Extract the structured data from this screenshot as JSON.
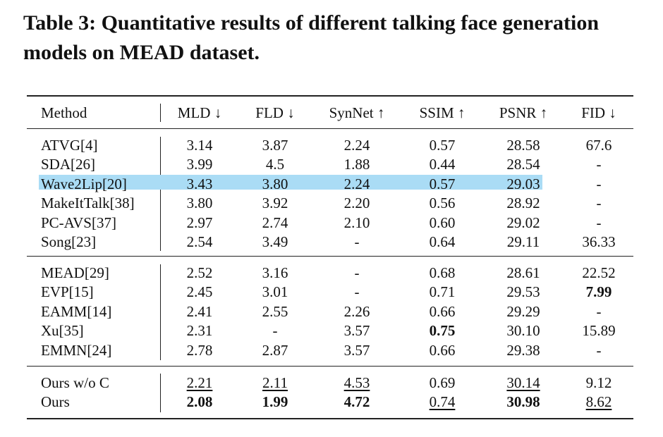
{
  "caption": "Table 3: Quantitative results of different talking face generation models on MEAD dataset.",
  "columns": [
    "Method",
    "MLD ↓",
    "FLD ↓",
    "SynNet ↑",
    "SSIM ↑",
    "PSNR ↑",
    "FID ↓"
  ],
  "highlight_color": "#aadcf5",
  "groups": [
    [
      {
        "method": "ATVG[4]",
        "values": [
          "3.14",
          "3.87",
          "2.24",
          "0.57",
          "28.58",
          "67.6"
        ]
      },
      {
        "method": "SDA[26]",
        "values": [
          "3.99",
          "4.5",
          "1.88",
          "0.44",
          "28.54",
          "-"
        ]
      },
      {
        "method": "Wave2Lip[20]",
        "values": [
          "3.43",
          "3.80",
          "2.24",
          "0.57",
          "29.03",
          "-"
        ],
        "highlighted": true
      },
      {
        "method": "MakeItTalk[38]",
        "values": [
          "3.80",
          "3.92",
          "2.20",
          "0.56",
          "28.92",
          "-"
        ]
      },
      {
        "method": "PC-AVS[37]",
        "values": [
          "2.97",
          "2.74",
          "2.10",
          "0.60",
          "29.02",
          "-"
        ]
      },
      {
        "method": "Song[23]",
        "values": [
          "2.54",
          "3.49",
          "-",
          "0.64",
          "29.11",
          "36.33"
        ]
      }
    ],
    [
      {
        "method": "MEAD[29]",
        "values": [
          "2.52",
          "3.16",
          "-",
          "0.68",
          "28.61",
          "22.52"
        ]
      },
      {
        "method": "EVP[15]",
        "values": [
          "2.45",
          "3.01",
          "-",
          "0.71",
          "29.53",
          "7.99"
        ],
        "bold": [
          5
        ]
      },
      {
        "method": "EAMM[14]",
        "values": [
          "2.41",
          "2.55",
          "2.26",
          "0.66",
          "29.29",
          "-"
        ]
      },
      {
        "method": "Xu[35]",
        "values": [
          "2.31",
          "-",
          "3.57",
          "0.75",
          "30.10",
          "15.89"
        ],
        "bold": [
          3
        ]
      },
      {
        "method": "EMMN[24]",
        "values": [
          "2.78",
          "2.87",
          "3.57",
          "0.66",
          "29.38",
          "-"
        ]
      }
    ],
    [
      {
        "method": "Ours w/o C",
        "values": [
          "2.21",
          "2.11",
          "4.53",
          "0.69",
          "30.14",
          "9.12"
        ],
        "underline": [
          0,
          1,
          2,
          4
        ]
      },
      {
        "method": "Ours",
        "values": [
          "2.08",
          "1.99",
          "4.72",
          "0.74",
          "30.98",
          "8.62"
        ],
        "bold": [
          0,
          1,
          2,
          4
        ],
        "underline": [
          3,
          5
        ]
      }
    ]
  ]
}
